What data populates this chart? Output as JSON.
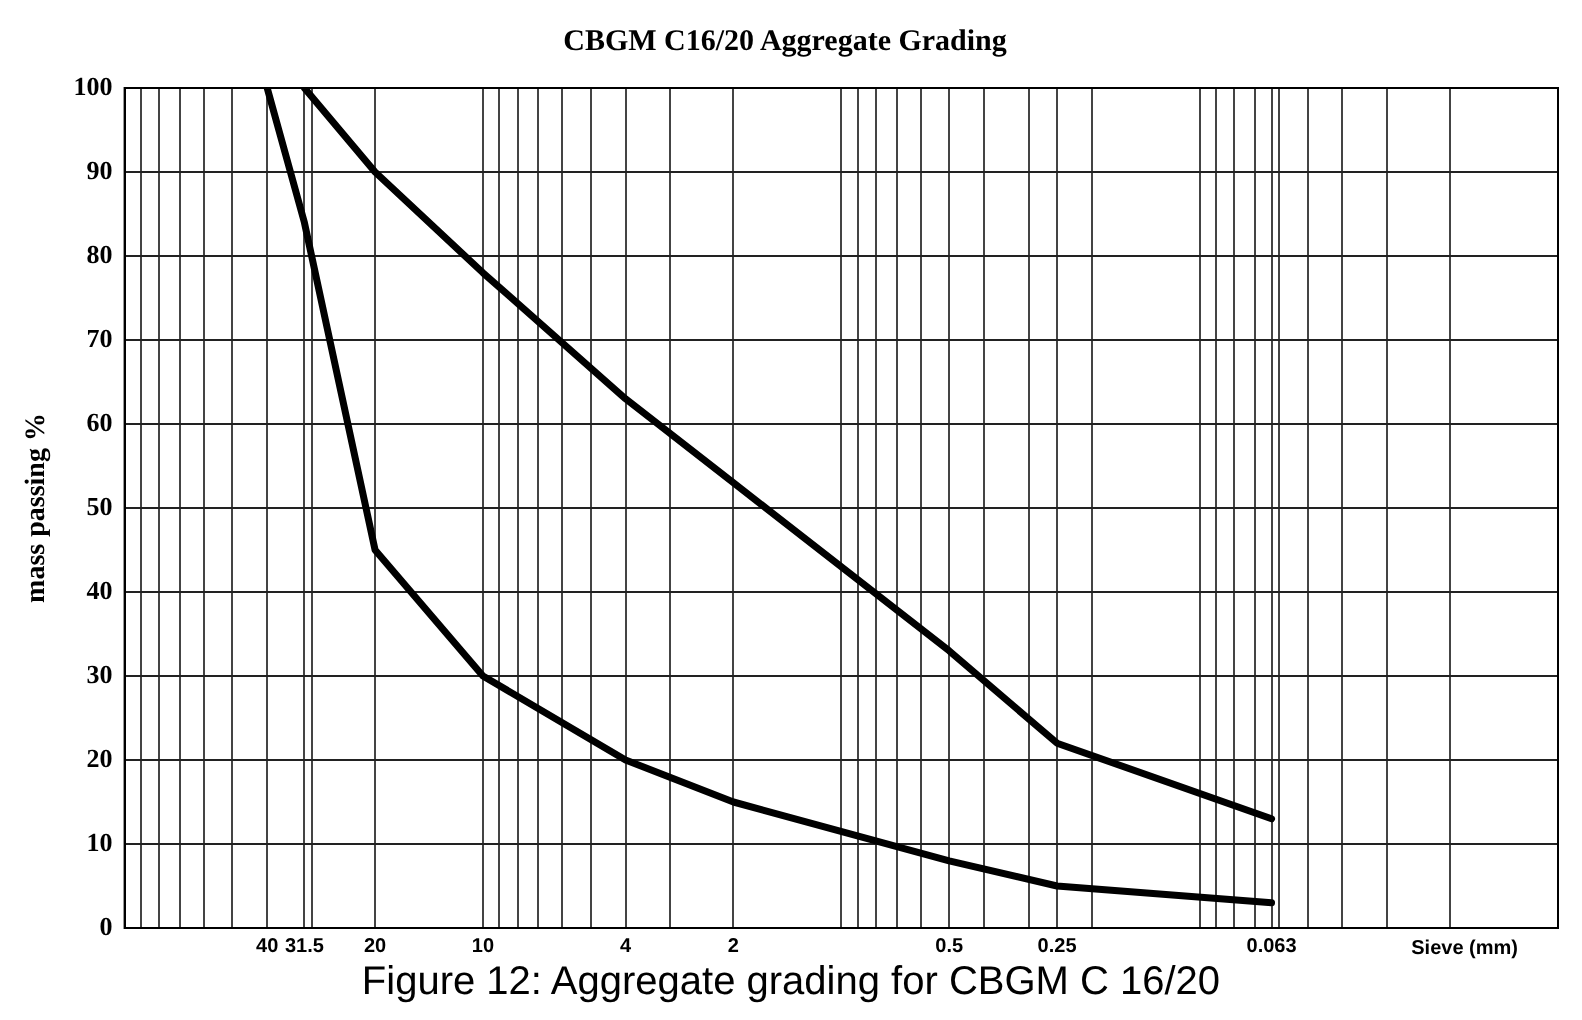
{
  "chart_data": {
    "type": "line",
    "title": "CBGM C16/20 Aggregate Grading",
    "xlabel": "Sieve (mm)",
    "ylabel": "mass passing %",
    "log": "x",
    "marker": "none",
    "line_style": "solid",
    "grid": true,
    "legend": false,
    "xlim": [
      100,
      0.01
    ],
    "ylim": [
      0,
      100
    ],
    "xticks": [
      {
        "value": 100,
        "label": null
      },
      {
        "value": 90,
        "label": null
      },
      {
        "value": 80,
        "label": null
      },
      {
        "value": 70,
        "label": null
      },
      {
        "value": 60,
        "label": null
      },
      {
        "value": 50,
        "label": null
      },
      40,
      31.5,
      {
        "value": 30,
        "label": null
      },
      20,
      10,
      {
        "value": 9,
        "label": null
      },
      {
        "value": 8,
        "label": null
      },
      {
        "value": 7,
        "label": null
      },
      {
        "value": 6,
        "label": null
      },
      {
        "value": 5,
        "label": null
      },
      4,
      {
        "value": 3,
        "label": null
      },
      2,
      {
        "value": 1,
        "label": null
      },
      {
        "value": 0.9,
        "label": null
      },
      {
        "value": 0.8,
        "label": null
      },
      {
        "value": 0.7,
        "label": null
      },
      {
        "value": 0.6,
        "label": null
      },
      0.5,
      {
        "value": 0.4,
        "label": null
      },
      {
        "value": 0.3,
        "label": null
      },
      0.25,
      {
        "value": 0.2,
        "label": null
      },
      {
        "value": 0.1,
        "label": null
      },
      {
        "value": 0.09,
        "label": null
      },
      {
        "value": 0.08,
        "label": null
      },
      {
        "value": 0.07,
        "label": null
      },
      0.063,
      {
        "value": 0.06,
        "label": null
      },
      {
        "value": 0.05,
        "label": null
      },
      {
        "value": 0.04,
        "label": null
      },
      {
        "value": 0.03,
        "label": null
      },
      {
        "value": 0.02,
        "label": null
      },
      {
        "value": 0.01,
        "label": null
      }
    ],
    "yticks": [
      0,
      10,
      20,
      30,
      40,
      50,
      60,
      70,
      80,
      90,
      100
    ],
    "series": [
      {
        "color": "#000000",
        "x": [
          31.5,
          20,
          10,
          4,
          2,
          0.5,
          0.25,
          0.063
        ],
        "values": [
          100,
          90,
          78,
          63,
          53,
          33,
          22,
          13
        ]
      },
      {
        "color": "#000000",
        "x": [
          40,
          31.5,
          20,
          10,
          4,
          2,
          0.5,
          0.25,
          0.063
        ],
        "values": [
          100,
          84,
          45,
          30,
          20,
          15,
          8,
          5,
          3
        ]
      }
    ],
    "annotations": [
      "Figure 12: Aggregate grading for CBGM C 16/20"
    ]
  }
}
